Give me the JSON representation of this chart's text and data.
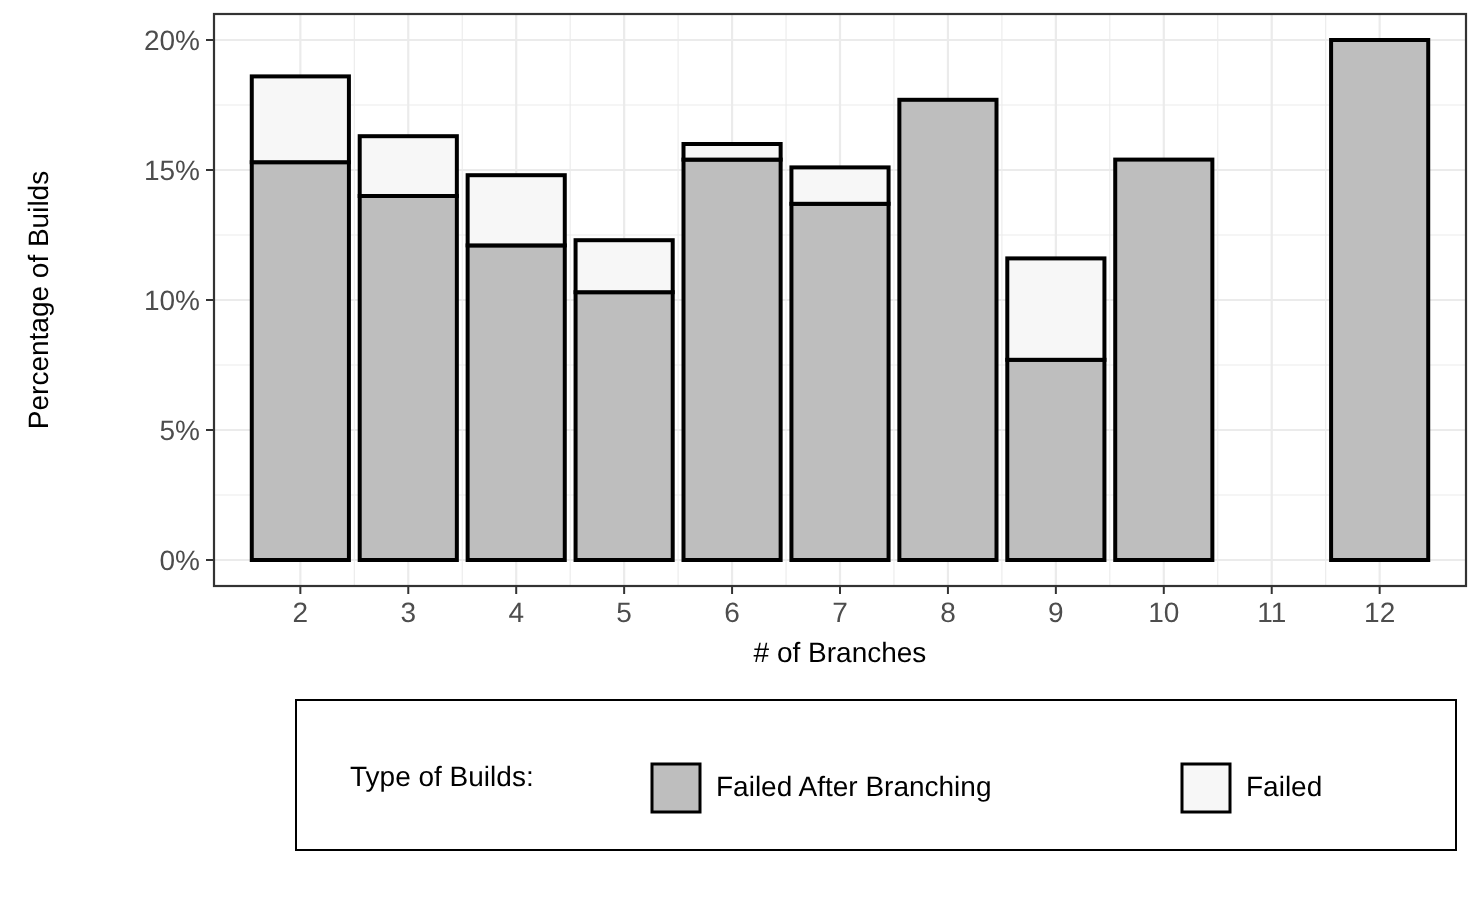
{
  "chart_data": {
    "type": "bar",
    "stacked": true,
    "xlabel": "# of Branches",
    "ylabel": "Percentage of Builds",
    "legend_title": "Type of Builds:",
    "legend": "bottom",
    "grid": true,
    "categories": [
      "2",
      "3",
      "4",
      "5",
      "6",
      "7",
      "8",
      "9",
      "10",
      "11",
      "12"
    ],
    "series": [
      {
        "name": "Failed After Branching",
        "color": "#bebebe",
        "values": [
          15.3,
          14.0,
          12.1,
          10.3,
          15.4,
          13.7,
          17.7,
          7.7,
          15.4,
          null,
          20.0
        ]
      },
      {
        "name": "Failed",
        "color": "#f7f7f7",
        "values": [
          3.3,
          2.3,
          2.7,
          2.0,
          0.6,
          1.4,
          null,
          3.9,
          null,
          null,
          null
        ]
      }
    ],
    "ylim": [
      -1,
      21
    ],
    "yticks": [
      {
        "value": 0,
        "label": "0%"
      },
      {
        "value": 5,
        "label": "5%"
      },
      {
        "value": 10,
        "label": "10%"
      },
      {
        "value": 15,
        "label": "15%"
      },
      {
        "value": 20,
        "label": "20%"
      }
    ]
  }
}
